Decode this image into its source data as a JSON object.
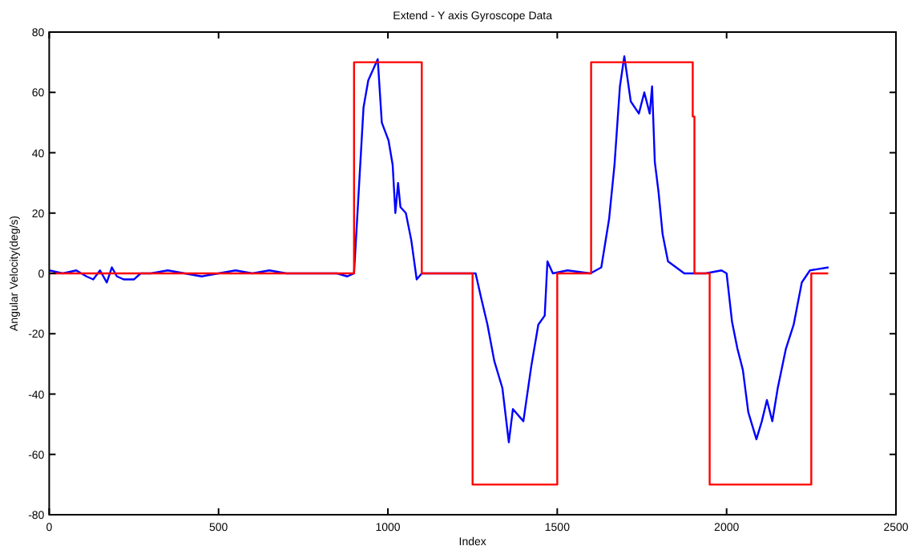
{
  "chart_data": {
    "type": "line",
    "title": "Extend - Y axis Gyroscope Data",
    "xlabel": "Index",
    "ylabel": "Angular Velocity(deg/s)",
    "xlim": [
      0,
      2500
    ],
    "xticks": [
      0,
      500,
      1000,
      1500,
      2000,
      2500
    ],
    "ylim": [
      -80,
      80
    ],
    "yticks": [
      -80,
      -60,
      -40,
      -20,
      0,
      20,
      40,
      60,
      80
    ],
    "grid": false,
    "series": [
      {
        "color": "#0000ff",
        "x": [
          0,
          40,
          80,
          110,
          130,
          150,
          170,
          185,
          200,
          220,
          250,
          270,
          300,
          350,
          400,
          450,
          500,
          550,
          600,
          650,
          700,
          750,
          800,
          850,
          880,
          900,
          928,
          942,
          970,
          982,
          1002,
          1014,
          1022,
          1030,
          1037,
          1053,
          1069,
          1085,
          1100,
          1150,
          1200,
          1259,
          1275,
          1294,
          1314,
          1338,
          1357,
          1369,
          1400,
          1423,
          1444,
          1463,
          1471,
          1487,
          1530,
          1598,
          1630,
          1653,
          1669,
          1685,
          1698,
          1717,
          1741,
          1757,
          1773,
          1780,
          1788,
          1799,
          1811,
          1827,
          1875,
          1938,
          1985,
          2000,
          2016,
          2032,
          2048,
          2064,
          2088,
          2104,
          2119,
          2135,
          2151,
          2175,
          2198,
          2222,
          2246,
          2301
        ],
        "values": [
          1,
          0,
          1,
          -1,
          -2,
          1,
          -3,
          2,
          -1,
          -2,
          -2,
          0,
          0,
          1,
          0,
          -1,
          0,
          1,
          0,
          1,
          0,
          0,
          0,
          0,
          -1,
          0,
          55,
          64,
          71,
          50,
          44,
          36,
          20,
          30,
          22,
          20,
          11,
          -2,
          0,
          0,
          0,
          0,
          -8,
          -17,
          -29,
          -38,
          -56,
          -45,
          -49,
          -31,
          -17,
          -14,
          4,
          0,
          1,
          0,
          2,
          18,
          36,
          62,
          72,
          57,
          53,
          60,
          53,
          62,
          37,
          27,
          13,
          4,
          0,
          0,
          1,
          0,
          -16,
          -25,
          -32,
          -46,
          -55,
          -49,
          -42,
          -49,
          -38,
          -25,
          -17,
          -3,
          1,
          2
        ]
      },
      {
        "color": "#ff0000",
        "x": [
          0,
          900,
          900,
          1100,
          1100,
          1250,
          1250,
          1500,
          1500,
          1600,
          1600,
          1900,
          1900,
          1905,
          1905,
          1950,
          1950,
          2250,
          2250,
          2300
        ],
        "values": [
          0,
          0,
          70,
          70,
          0,
          0,
          -70,
          -70,
          0,
          0,
          70,
          70,
          52,
          52,
          0,
          0,
          -70,
          -70,
          0,
          0
        ]
      }
    ]
  }
}
